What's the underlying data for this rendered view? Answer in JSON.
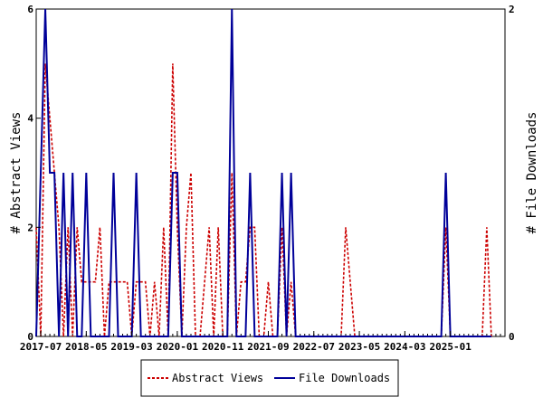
{
  "chart_data": {
    "type": "line",
    "grid": false,
    "legend_position": "bottom-center",
    "x_tick_labels": [
      "2017-07",
      "2018-05",
      "2019-03",
      "2020-01",
      "2020-11",
      "2021-09",
      "2022-07",
      "2023-05",
      "2024-03",
      "2025-01"
    ],
    "x_range": [
      "2017-06",
      "2026-01"
    ],
    "left_axis": {
      "label": "# Abstract Views",
      "range": [
        0,
        6
      ],
      "ticks": [
        "0",
        "2",
        "4",
        "6"
      ]
    },
    "right_axis": {
      "label": "# File Downloads",
      "range": [
        0,
        2
      ],
      "ticks": [
        "0",
        "2"
      ]
    },
    "series": [
      {
        "name": "Abstract Views",
        "axis": "left",
        "color": "#cc0000",
        "style": "dashed",
        "points": [
          [
            "2017-06",
            2
          ],
          [
            "2017-07",
            0
          ],
          [
            "2017-08",
            5
          ],
          [
            "2017-09",
            4
          ],
          [
            "2017-10",
            3
          ],
          [
            "2017-11",
            2
          ],
          [
            "2017-12",
            0
          ],
          [
            "2018-01",
            2
          ],
          [
            "2018-02",
            0
          ],
          [
            "2018-03",
            2
          ],
          [
            "2018-04",
            1
          ],
          [
            "2018-05",
            1
          ],
          [
            "2018-06",
            1
          ],
          [
            "2018-07",
            1
          ],
          [
            "2018-08",
            2
          ],
          [
            "2018-09",
            0
          ],
          [
            "2018-10",
            1
          ],
          [
            "2018-11",
            1
          ],
          [
            "2018-12",
            1
          ],
          [
            "2019-01",
            1
          ],
          [
            "2019-02",
            1
          ],
          [
            "2019-03",
            0
          ],
          [
            "2019-04",
            1
          ],
          [
            "2019-05",
            1
          ],
          [
            "2019-06",
            1
          ],
          [
            "2019-07",
            0
          ],
          [
            "2019-08",
            1
          ],
          [
            "2019-09",
            0
          ],
          [
            "2019-10",
            2
          ],
          [
            "2019-11",
            0
          ],
          [
            "2019-12",
            5
          ],
          [
            "2020-01",
            2
          ],
          [
            "2020-02",
            0
          ],
          [
            "2020-03",
            2
          ],
          [
            "2020-04",
            3
          ],
          [
            "2020-05",
            0
          ],
          [
            "2020-06",
            0
          ],
          [
            "2020-07",
            1
          ],
          [
            "2020-08",
            2
          ],
          [
            "2020-09",
            0
          ],
          [
            "2020-10",
            2
          ],
          [
            "2020-11",
            0
          ],
          [
            "2020-12",
            0
          ],
          [
            "2021-01",
            3
          ],
          [
            "2021-02",
            0
          ],
          [
            "2021-03",
            1
          ],
          [
            "2021-04",
            1
          ],
          [
            "2021-05",
            2
          ],
          [
            "2021-06",
            2
          ],
          [
            "2021-07",
            0
          ],
          [
            "2021-08",
            0
          ],
          [
            "2021-09",
            1
          ],
          [
            "2021-10",
            0
          ],
          [
            "2021-11",
            0
          ],
          [
            "2021-12",
            2
          ],
          [
            "2022-01",
            0
          ],
          [
            "2022-02",
            1
          ],
          [
            "2022-03",
            0
          ],
          [
            "2022-04",
            0
          ],
          [
            "2022-05",
            0
          ],
          [
            "2022-06",
            0
          ],
          [
            "2022-07",
            0
          ],
          [
            "2022-08",
            0
          ],
          [
            "2022-09",
            0
          ],
          [
            "2022-10",
            0
          ],
          [
            "2022-11",
            0
          ],
          [
            "2022-12",
            0
          ],
          [
            "2023-01",
            0
          ],
          [
            "2023-02",
            2
          ],
          [
            "2023-03",
            1
          ],
          [
            "2023-04",
            0
          ],
          [
            "2023-05",
            0
          ],
          [
            "2023-06",
            0
          ],
          [
            "2023-07",
            0
          ],
          [
            "2023-08",
            0
          ],
          [
            "2023-09",
            0
          ],
          [
            "2023-10",
            0
          ],
          [
            "2023-11",
            0
          ],
          [
            "2023-12",
            0
          ],
          [
            "2024-01",
            0
          ],
          [
            "2024-02",
            0
          ],
          [
            "2024-03",
            0
          ],
          [
            "2024-04",
            0
          ],
          [
            "2024-05",
            0
          ],
          [
            "2024-06",
            0
          ],
          [
            "2024-07",
            0
          ],
          [
            "2024-08",
            0
          ],
          [
            "2024-09",
            0
          ],
          [
            "2024-10",
            0
          ],
          [
            "2024-11",
            0
          ],
          [
            "2024-12",
            2
          ],
          [
            "2025-01",
            0
          ],
          [
            "2025-02",
            0
          ],
          [
            "2025-03",
            0
          ],
          [
            "2025-04",
            0
          ],
          [
            "2025-05",
            0
          ],
          [
            "2025-06",
            0
          ],
          [
            "2025-07",
            0
          ],
          [
            "2025-08",
            0
          ],
          [
            "2025-09",
            2
          ],
          [
            "2025-10",
            0
          ]
        ]
      },
      {
        "name": "File Downloads",
        "axis": "right",
        "color": "#000099",
        "style": "solid",
        "points": [
          [
            "2017-06",
            0
          ],
          [
            "2017-07",
            1
          ],
          [
            "2017-08",
            2
          ],
          [
            "2017-09",
            1
          ],
          [
            "2017-10",
            1
          ],
          [
            "2017-11",
            0
          ],
          [
            "2017-12",
            1
          ],
          [
            "2018-01",
            0
          ],
          [
            "2018-02",
            1
          ],
          [
            "2018-03",
            0
          ],
          [
            "2018-04",
            0
          ],
          [
            "2018-05",
            1
          ],
          [
            "2018-06",
            0
          ],
          [
            "2018-07",
            0
          ],
          [
            "2018-08",
            0
          ],
          [
            "2018-09",
            0
          ],
          [
            "2018-10",
            0
          ],
          [
            "2018-11",
            1
          ],
          [
            "2018-12",
            0
          ],
          [
            "2019-01",
            0
          ],
          [
            "2019-02",
            0
          ],
          [
            "2019-03",
            0
          ],
          [
            "2019-04",
            1
          ],
          [
            "2019-05",
            0
          ],
          [
            "2019-06",
            0
          ],
          [
            "2019-07",
            0
          ],
          [
            "2019-08",
            0
          ],
          [
            "2019-09",
            0
          ],
          [
            "2019-10",
            0
          ],
          [
            "2019-11",
            0
          ],
          [
            "2019-12",
            1
          ],
          [
            "2020-01",
            1
          ],
          [
            "2020-02",
            0
          ],
          [
            "2020-03",
            0
          ],
          [
            "2020-04",
            0
          ],
          [
            "2020-05",
            0
          ],
          [
            "2020-06",
            0
          ],
          [
            "2020-07",
            0
          ],
          [
            "2020-08",
            0
          ],
          [
            "2020-09",
            0
          ],
          [
            "2020-10",
            0
          ],
          [
            "2020-11",
            0
          ],
          [
            "2020-12",
            0
          ],
          [
            "2021-01",
            2
          ],
          [
            "2021-02",
            0
          ],
          [
            "2021-03",
            0
          ],
          [
            "2021-04",
            0
          ],
          [
            "2021-05",
            1
          ],
          [
            "2021-06",
            0
          ],
          [
            "2021-07",
            0
          ],
          [
            "2021-08",
            0
          ],
          [
            "2021-09",
            0
          ],
          [
            "2021-10",
            0
          ],
          [
            "2021-11",
            0
          ],
          [
            "2021-12",
            1
          ],
          [
            "2022-01",
            0
          ],
          [
            "2022-02",
            1
          ],
          [
            "2022-03",
            0
          ],
          [
            "2022-04",
            0
          ],
          [
            "2022-05",
            0
          ],
          [
            "2022-06",
            0
          ],
          [
            "2022-07",
            0
          ],
          [
            "2022-08",
            0
          ],
          [
            "2022-09",
            0
          ],
          [
            "2022-10",
            0
          ],
          [
            "2022-11",
            0
          ],
          [
            "2022-12",
            0
          ],
          [
            "2023-01",
            0
          ],
          [
            "2023-02",
            0
          ],
          [
            "2023-03",
            0
          ],
          [
            "2023-04",
            0
          ],
          [
            "2023-05",
            0
          ],
          [
            "2023-06",
            0
          ],
          [
            "2023-07",
            0
          ],
          [
            "2023-08",
            0
          ],
          [
            "2023-09",
            0
          ],
          [
            "2023-10",
            0
          ],
          [
            "2023-11",
            0
          ],
          [
            "2023-12",
            0
          ],
          [
            "2024-01",
            0
          ],
          [
            "2024-02",
            0
          ],
          [
            "2024-03",
            0
          ],
          [
            "2024-04",
            0
          ],
          [
            "2024-05",
            0
          ],
          [
            "2024-06",
            0
          ],
          [
            "2024-07",
            0
          ],
          [
            "2024-08",
            0
          ],
          [
            "2024-09",
            0
          ],
          [
            "2024-10",
            0
          ],
          [
            "2024-11",
            0
          ],
          [
            "2024-12",
            1
          ],
          [
            "2025-01",
            0
          ],
          [
            "2025-02",
            0
          ],
          [
            "2025-03",
            0
          ],
          [
            "2025-04",
            0
          ],
          [
            "2025-05",
            0
          ],
          [
            "2025-06",
            0
          ],
          [
            "2025-07",
            0
          ],
          [
            "2025-08",
            0
          ],
          [
            "2025-09",
            0
          ],
          [
            "2025-10",
            0
          ]
        ]
      }
    ]
  }
}
